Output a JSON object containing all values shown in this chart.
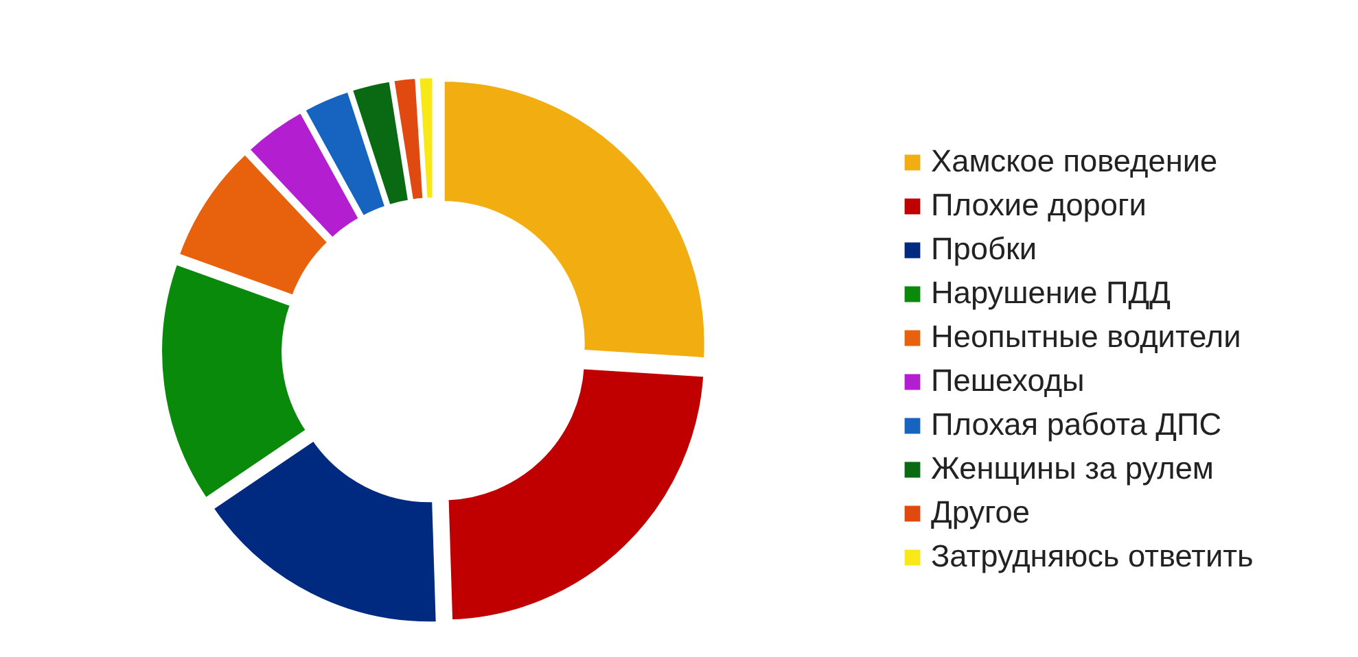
{
  "chart_data": {
    "type": "donut",
    "legend": "right",
    "categories": [
      "Хамское поведение",
      "Плохие дороги",
      "Пробки",
      "Нарушение ПДД",
      "Неопытные водители",
      "Пешеходы",
      "Плохая работа ДПС",
      "Женщины за рулем",
      "Другое",
      "Затрудняюсь ответить"
    ],
    "values": [
      26,
      23.5,
      16,
      15,
      7.5,
      4,
      3,
      2.5,
      1.5,
      1
    ],
    "colors": [
      "#f2ae10",
      "#c00000",
      "#002a80",
      "#0a8a0a",
      "#e8620e",
      "#b21ed0",
      "#1764c0",
      "#0a6a14",
      "#e04a10",
      "#f8e818"
    ]
  }
}
